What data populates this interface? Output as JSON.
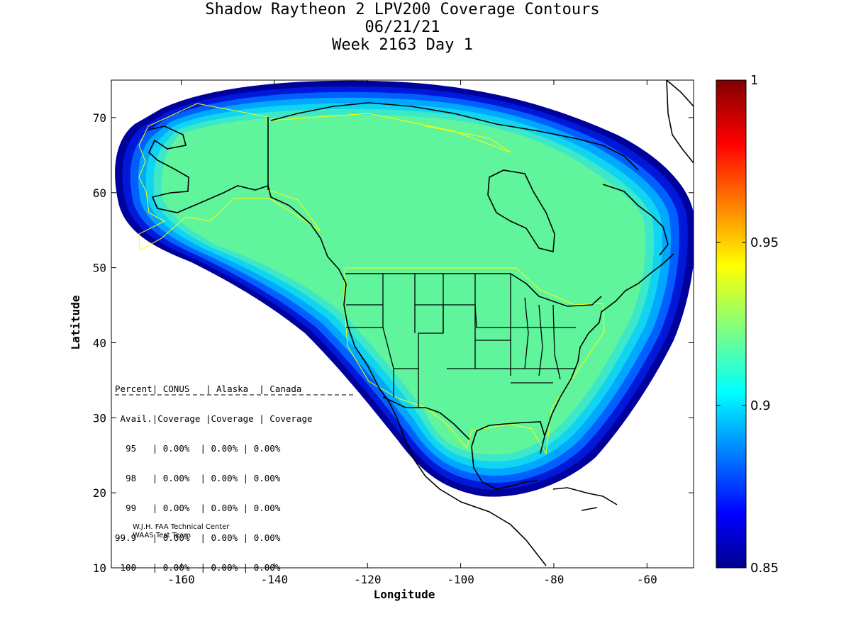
{
  "title": {
    "line1": "Shadow Raytheon 2 LPV200 Coverage Contours",
    "line2": "06/21/21",
    "line3": "Week 2163 Day 1"
  },
  "axes": {
    "xlabel": "Longitude",
    "ylabel": "Latitude",
    "x_ticks": [
      "-160",
      "-140",
      "-120",
      "-100",
      "-80",
      "-60"
    ],
    "y_ticks": [
      "10",
      "20",
      "30",
      "40",
      "50",
      "60",
      "70"
    ],
    "xlim": [
      -175,
      -50
    ],
    "ylim": [
      10,
      75
    ]
  },
  "colorbar": {
    "labels": [
      "1",
      "0.95",
      "0.9",
      "0.85"
    ],
    "range": [
      0.85,
      1
    ],
    "colormap": "jet"
  },
  "stats_table": {
    "header1": [
      "Percent",
      "CONUS",
      "Alaska",
      "Canada"
    ],
    "header2": [
      "Avail.",
      "Coverage",
      "Coverage",
      "Coverage"
    ],
    "rows": [
      {
        "pct": "95",
        "conus": "0.00%",
        "alaska": "0.00%",
        "canada": "0.00%"
      },
      {
        "pct": "98",
        "conus": "0.00%",
        "alaska": "0.00%",
        "canada": "0.00%"
      },
      {
        "pct": "99",
        "conus": "0.00%",
        "alaska": "0.00%",
        "canada": "0.00%"
      },
      {
        "pct": "99.9",
        "conus": "0.00%",
        "alaska": "0.00%",
        "canada": "0.00%"
      },
      {
        "pct": "100",
        "conus": "0.00%",
        "alaska": "0.00%",
        "canada": "0.00%"
      }
    ]
  },
  "credits": {
    "line1": "W.J.H. FAA Technical Center",
    "line2": "WAAS Test Team"
  },
  "colors": {
    "coverage_main": "#60f49c",
    "band_1": "#3ce8c8",
    "band_2": "#10d4f0",
    "band_3": "#00a8ff",
    "band_4": "#0060ff",
    "band_5": "#0018d8",
    "band_6": "#00009c",
    "coastline": "#000000",
    "region_outline": "#ffff00"
  }
}
